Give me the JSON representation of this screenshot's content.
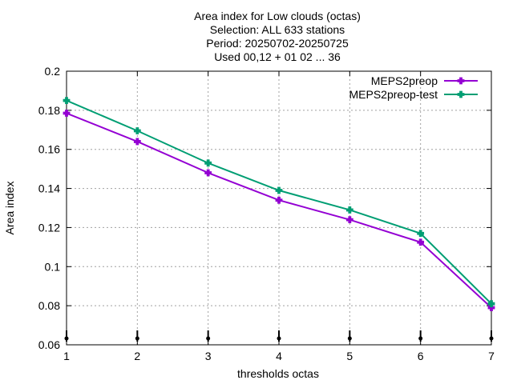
{
  "chart_data": {
    "type": "line",
    "title_lines": [
      "Area index  for Low clouds (octas)",
      "Selection: ALL    633 stations",
      "Period: 20250702-20250725",
      "Used 00,12 + 01 02 ... 36"
    ],
    "xlabel": "thresholds octas",
    "ylabel": "Area index",
    "x": [
      1,
      2,
      3,
      4,
      5,
      6,
      7
    ],
    "xlim": [
      1,
      7
    ],
    "ylim": [
      0.06,
      0.2
    ],
    "x_ticks": [
      "1",
      "2",
      "3",
      "4",
      "5",
      "6",
      "7"
    ],
    "y_ticks": [
      {
        "value": 0.06,
        "label": "0.06"
      },
      {
        "value": 0.08,
        "label": "0.08"
      },
      {
        "value": 0.1,
        "label": "0.1"
      },
      {
        "value": 0.12,
        "label": "0.12"
      },
      {
        "value": 0.14,
        "label": "0.14"
      },
      {
        "value": 0.16,
        "label": "0.16"
      },
      {
        "value": 0.18,
        "label": "0.18"
      },
      {
        "value": 0.2,
        "label": "0.2"
      }
    ],
    "grid": true,
    "legend_position": "top-right",
    "bottom_markers": true,
    "series": [
      {
        "name": "MEPS2preop",
        "color": "#9400d3",
        "values": [
          0.1785,
          0.164,
          0.148,
          0.134,
          0.124,
          0.1125,
          0.079
        ]
      },
      {
        "name": "MEPS2preop-test",
        "color": "#009e73",
        "values": [
          0.185,
          0.1695,
          0.153,
          0.139,
          0.129,
          0.117,
          0.081
        ]
      }
    ]
  }
}
